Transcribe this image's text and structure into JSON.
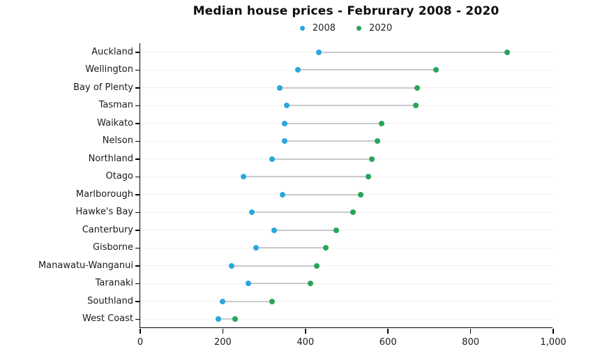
{
  "chart_data": {
    "type": "scatter",
    "subtype": "dumbbell",
    "title": "Median house prices - Februrary 2008 - 2020",
    "categories": [
      "Auckland",
      "Wellington",
      "Bay of Plenty",
      "Tasman",
      "Waikato",
      "Nelson",
      "Northland",
      "Otago",
      "Marlborough",
      "Hawke's Bay",
      "Canterbury",
      "Gisborne",
      "Manawatu-Wanganui",
      "Taranaki",
      "Southland",
      "West Coast"
    ],
    "series": [
      {
        "name": "2008",
        "color": "#29a8dd",
        "values": [
          432,
          382,
          338,
          355,
          350,
          349,
          320,
          250,
          345,
          270,
          325,
          280,
          221,
          261,
          200,
          190
        ]
      },
      {
        "name": "2020",
        "color": "#27a65a",
        "values": [
          888,
          716,
          671,
          667,
          585,
          575,
          560,
          552,
          533,
          516,
          474,
          450,
          427,
          412,
          319,
          229
        ]
      }
    ],
    "xlabel": "",
    "ylabel": "",
    "xlim": [
      0,
      1000
    ],
    "xticks": [
      {
        "value": 0,
        "label": "0"
      },
      {
        "value": 200,
        "label": "200"
      },
      {
        "value": 400,
        "label": "400"
      },
      {
        "value": 600,
        "label": "600"
      },
      {
        "value": 800,
        "label": "800"
      },
      {
        "value": 1000,
        "label": "1,000"
      }
    ],
    "legend_position": "top-center",
    "grid": "faint horizontal line per category row",
    "connector_color": "#c9c9c9",
    "axis_color": "#000000"
  }
}
